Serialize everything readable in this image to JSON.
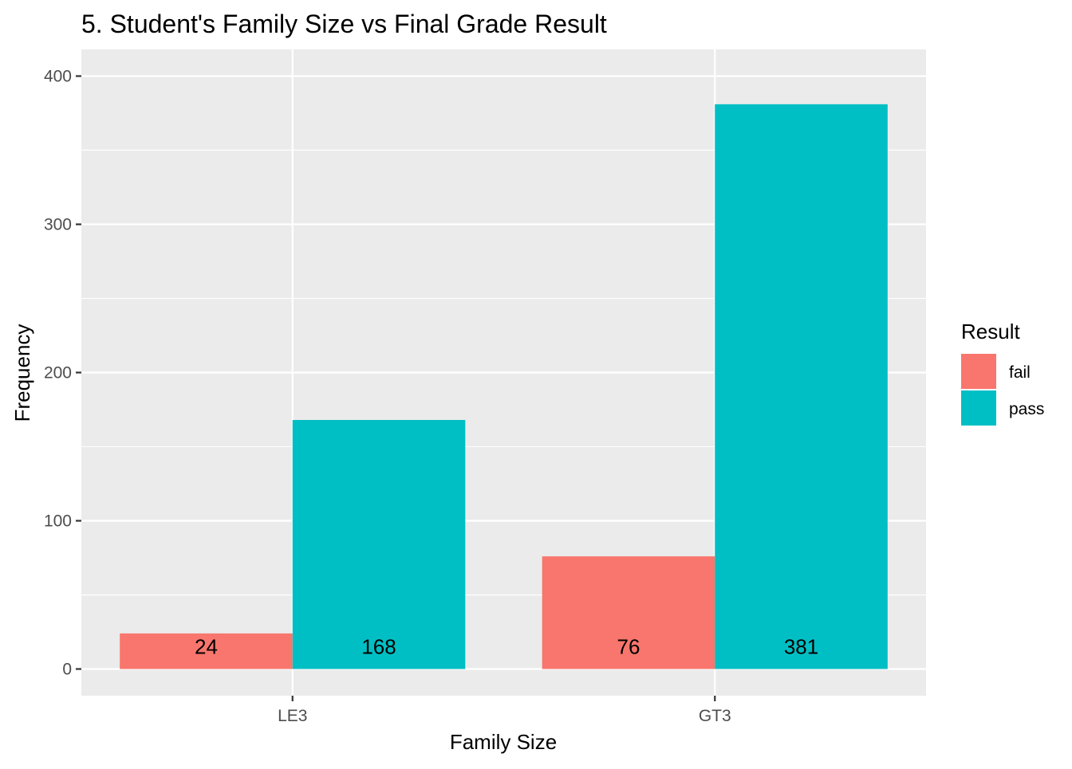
{
  "chart_data": {
    "type": "bar",
    "title": "5. Student's Family Size vs Final Grade Result",
    "xlabel": "Family Size",
    "ylabel": "Frequency",
    "categories": [
      "LE3",
      "GT3"
    ],
    "series": [
      {
        "name": "fail",
        "values": [
          24,
          76
        ],
        "color": "#F8766D"
      },
      {
        "name": "pass",
        "values": [
          168,
          381
        ],
        "color": "#00BFC4"
      }
    ],
    "data_labels": [
      [
        "24",
        "76"
      ],
      [
        "168",
        "381"
      ]
    ],
    "yticks": [
      0,
      100,
      200,
      300,
      400
    ],
    "ytick_labels": [
      "0",
      "100",
      "200",
      "300",
      "400"
    ],
    "ylim": [
      -18,
      418
    ],
    "grid": true,
    "legend": {
      "title": "Result",
      "position": "right"
    },
    "panel_background": "#EBEBEB"
  }
}
